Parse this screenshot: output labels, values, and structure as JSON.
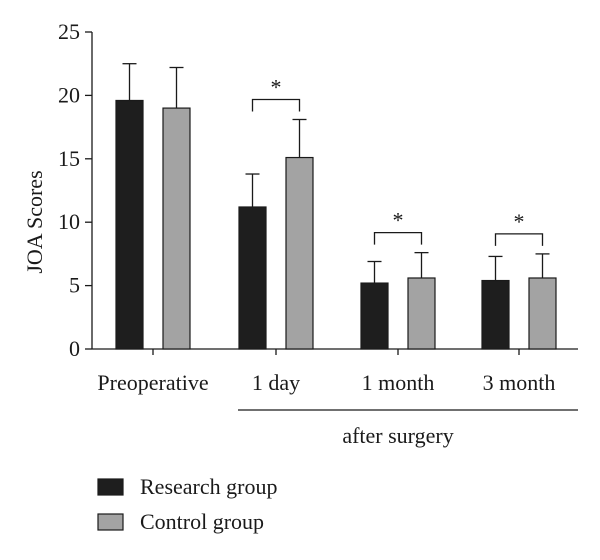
{
  "chart_data": {
    "type": "bar",
    "categories": [
      "Preoperative",
      "1 day",
      "1 month",
      "3 month"
    ],
    "group_label": "after surgery",
    "ylabel": "JOA Scores",
    "ylim": [
      0,
      25
    ],
    "yticks": [
      0,
      5,
      10,
      15,
      20,
      25
    ],
    "grid": false,
    "legend_position": "bottom-left",
    "series": [
      {
        "name": "Research group",
        "color": "#1e1e1e",
        "values": [
          19.6,
          11.2,
          5.2,
          5.4
        ],
        "errors": [
          2.9,
          2.6,
          1.7,
          1.9
        ]
      },
      {
        "name": "Control group",
        "color": "#a3a3a3",
        "values": [
          19.0,
          15.1,
          5.6,
          5.6
        ],
        "errors": [
          3.2,
          3.0,
          2.0,
          1.9
        ]
      }
    ],
    "significance": [
      {
        "category": "1 day",
        "label": "*"
      },
      {
        "category": "1 month",
        "label": "*"
      },
      {
        "category": "3 month",
        "label": "*"
      }
    ]
  }
}
